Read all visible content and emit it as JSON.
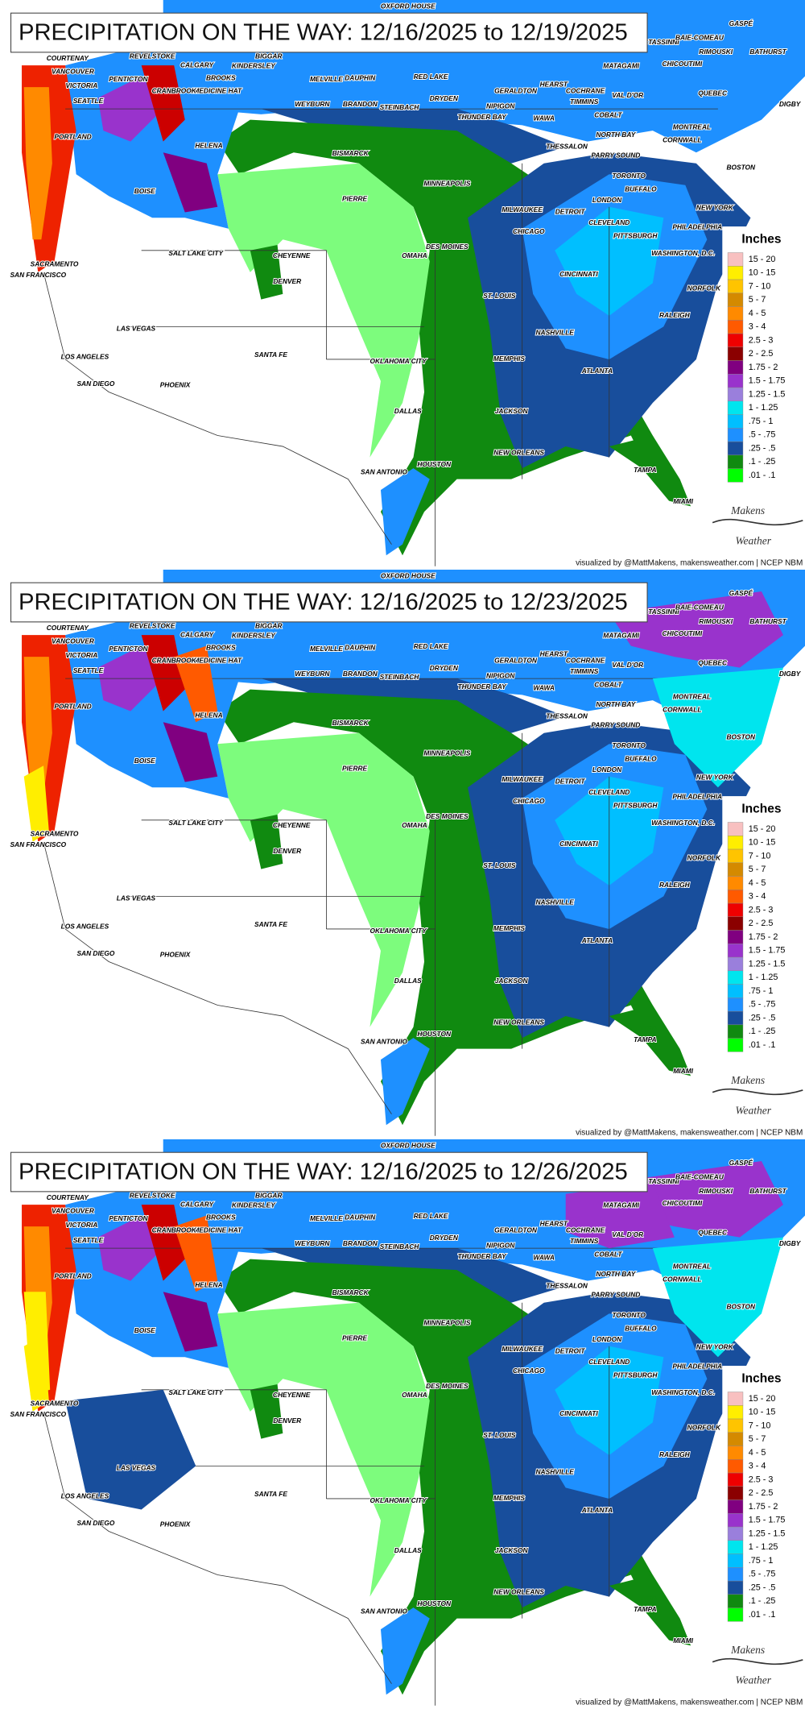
{
  "panels": [
    {
      "title": "PRECIPITATION ON THE WAY: 12/16/2025 to 12/19/2025"
    },
    {
      "title": "PRECIPITATION ON THE WAY: 12/16/2025 to 12/23/2025"
    },
    {
      "title": "PRECIPITATION ON THE WAY: 12/16/2025 to 12/26/2025"
    }
  ],
  "legend": {
    "title": "Inches",
    "items": [
      {
        "label": "15 - 20",
        "color": "#f8c0c0"
      },
      {
        "label": "10 - 15",
        "color": "#ffee00"
      },
      {
        "label": "7 - 10",
        "color": "#ffc400"
      },
      {
        "label": "5 - 7",
        "color": "#d48a00"
      },
      {
        "label": "4 - 5",
        "color": "#ff8a00"
      },
      {
        "label": "3 - 4",
        "color": "#ff5a00"
      },
      {
        "label": "2.5 - 3",
        "color": "#ee0000"
      },
      {
        "label": "2 - 2.5",
        "color": "#8b0000"
      },
      {
        "label": "1.75 - 2",
        "color": "#800080"
      },
      {
        "label": "1.5 - 1.75",
        "color": "#9933cc"
      },
      {
        "label": "1.25 - 1.5",
        "color": "#9a7fdc"
      },
      {
        "label": "1 - 1.25",
        "color": "#00e5ee"
      },
      {
        "label": ".75 - 1",
        "color": "#00bfff"
      },
      {
        "label": ".5 - .75",
        "color": "#1e90ff"
      },
      {
        "label": ".25 - .5",
        "color": "#184e9c"
      },
      {
        "label": ".1 - .25",
        "color": "#108a10"
      },
      {
        "label": ".01 - .1",
        "color": "#00ff00"
      }
    ]
  },
  "cities": [
    "OXFORD HOUSE",
    "STASSINNI",
    "GASPÉ",
    "BAIE-COMEAU",
    "RIMOUSKI",
    "BATHURST",
    "CHICOUTIMI",
    "DIGBY",
    "COURTENAY",
    "REVELSTOKE",
    "BIGGAR",
    "VANCOUVER",
    "PENTICTON",
    "CALGARY",
    "KINDERSLEY",
    "VICTORIA",
    "BROOKS",
    "MEDICINE HAT",
    "CRANBROOK",
    "MELVILLE",
    "DAUPHIN",
    "RED LAKE",
    "MATAGAMI",
    "SEATTLE",
    "WEYBURN",
    "BRANDON",
    "DRYDEN",
    "GERALDTON",
    "HEARST",
    "COCHRANE",
    "VAL D'OR",
    "STEINBACH",
    "NIPIGON",
    "TIMMINS",
    "QUEBEC",
    "THUNDER BAY",
    "WAWA",
    "COBALT",
    "MONTREAL",
    "NORTH BAY",
    "CORNWALL",
    "PORTLAND",
    "HELENA",
    "BISMARCK",
    "THESSALON",
    "PARRY SOUND",
    "BOSTON",
    "TORONTO",
    "BUFFALO",
    "MINNEAPOLIS",
    "PIERRE",
    "BOISE",
    "LONDON",
    "NEW YORK",
    "MILWAUKEE",
    "DETROIT",
    "CLEVELAND",
    "PHILADELPHIA",
    "CHICAGO",
    "PITTSBURGH",
    "SALT LAKE CITY",
    "CHEYENNE",
    "DES MOINES",
    "OMAHA",
    "WASHINGTON, D.C.",
    "SACRAMENTO",
    "SAN FRANCISCO",
    "CINCINNATI",
    "DENVER",
    "NORFOLK",
    "ST. LOUIS",
    "LAS VEGAS",
    "RALEIGH",
    "NASHVILLE",
    "SANTA FE",
    "LOS ANGELES",
    "MEMPHIS",
    "OKLAHOMA CITY",
    "ATLANTA",
    "SAN DIEGO",
    "PHOENIX",
    "DALLAS",
    "JACKSON",
    "NEW ORLEANS",
    "HOUSTON",
    "SAN ANTONIO",
    "TAMPA",
    "MIAMI"
  ],
  "logo": {
    "top": "Makens",
    "bottom": "Weather"
  },
  "credit": "visualized by @MattMakens, makensweather.com | NCEP NBM"
}
